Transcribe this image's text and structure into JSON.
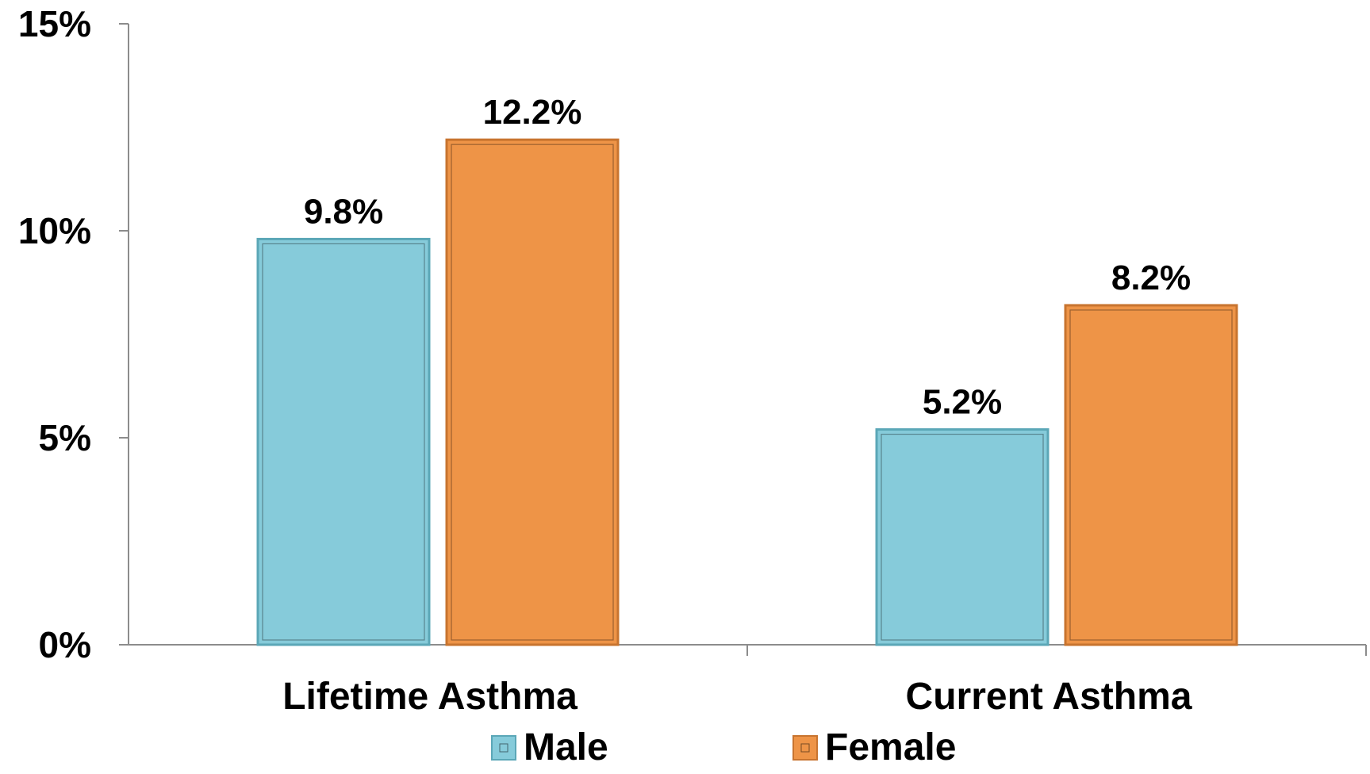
{
  "chart_data": {
    "type": "bar",
    "categories": [
      "Lifetime Asthma",
      "Current Asthma"
    ],
    "series": [
      {
        "name": "Male",
        "values": [
          9.8,
          5.2
        ],
        "labels": [
          "9.8%",
          "5.2%"
        ],
        "color": "#86CBDA",
        "edge": "#5BA7B7"
      },
      {
        "name": "Female",
        "values": [
          12.2,
          8.2
        ],
        "labels": [
          "12.2%",
          "8.2%"
        ],
        "color": "#EE9447",
        "edge": "#C8742F"
      }
    ],
    "ylim": [
      0,
      15
    ],
    "yticks": [
      0,
      5,
      10,
      15
    ],
    "ytick_labels": [
      "0%",
      "5%",
      "10%",
      "15%"
    ],
    "xlabel": "",
    "ylabel": "",
    "grid": false,
    "legend_position": "bottom"
  }
}
